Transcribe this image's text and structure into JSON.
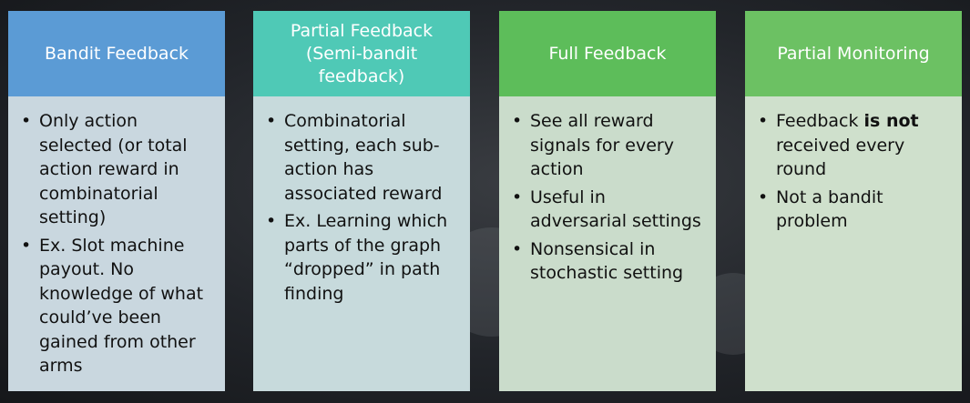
{
  "cards": [
    {
      "title": "Bandit Feedback",
      "header_color": "#5b9bd5",
      "body_color": "#c9d7df",
      "bullets": [
        "Only action selected (or total action reward in combinatorial setting)",
        "Ex. Slot machine payout. No knowledge of what could’ve been gained from other arms"
      ]
    },
    {
      "title": "Partial Feedback\n(Semi-bandit\nfeedback)",
      "header_color": "#4fc9b6",
      "body_color": "#c7dadc",
      "bullets": [
        "Combinatorial setting, each sub-action has associated reward",
        "Ex. Learning which parts of the graph “dropped” in path finding"
      ]
    },
    {
      "title": "Full Feedback",
      "header_color": "#5dbd5a",
      "body_color": "#cadccb",
      "bullets": [
        "See all reward signals for every action",
        "Useful in adversarial settings",
        "Nonsensical in stochastic setting"
      ]
    },
    {
      "title": "Partial Monitoring",
      "header_color": "#6cc163",
      "body_color": "#cfe0cc",
      "bullets_rich": [
        {
          "before": "Feedback ",
          "bold": "is not",
          "after": " received every round"
        }
      ],
      "bullets": [
        "Not a bandit problem"
      ]
    }
  ]
}
